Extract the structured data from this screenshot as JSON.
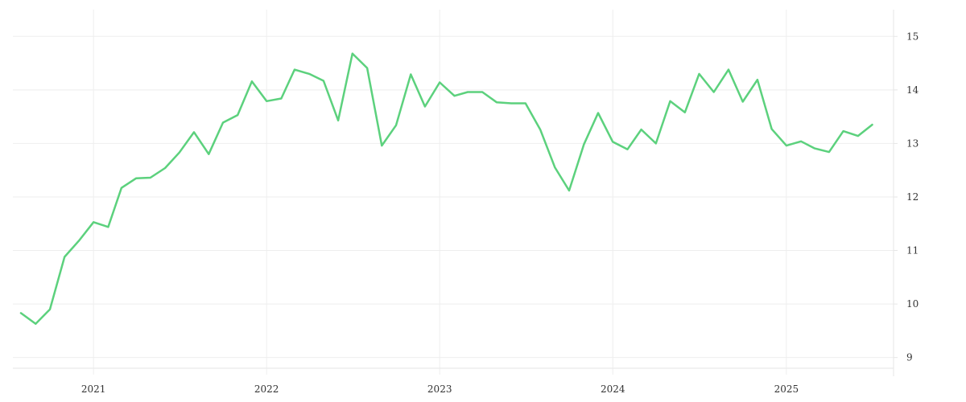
{
  "chart_data": {
    "type": "line",
    "title": "",
    "xlabel": "",
    "ylabel": "",
    "x_ticks": [
      "2021",
      "2022",
      "2023",
      "2024",
      "2025"
    ],
    "y_ticks": [
      "9",
      "10",
      "11",
      "12",
      "13",
      "14",
      "15"
    ],
    "ylim": [
      8.8,
      15.5
    ],
    "xlim": [
      "2020-07-15",
      "2025-08-15"
    ],
    "y_axis_position": "right",
    "grid": true,
    "colors": {
      "series": "#5cd17d",
      "grid": "#eeeeee",
      "axis": "#e6e6e6",
      "text": "#333333"
    },
    "series": [
      {
        "x": [
          "2020-08",
          "2020-09",
          "2020-10",
          "2020-11",
          "2020-12",
          "2021-01",
          "2021-02",
          "2021-03",
          "2021-04",
          "2021-05",
          "2021-06",
          "2021-07",
          "2021-08",
          "2021-09",
          "2021-10",
          "2021-11",
          "2021-12",
          "2022-01",
          "2022-02",
          "2022-03",
          "2022-04",
          "2022-05",
          "2022-06",
          "2022-07",
          "2022-08",
          "2022-09",
          "2022-10",
          "2022-11",
          "2022-12",
          "2023-01",
          "2023-02",
          "2023-03",
          "2023-04",
          "2023-05",
          "2023-06",
          "2023-07",
          "2023-08",
          "2023-09",
          "2023-10",
          "2023-11",
          "2023-12",
          "2024-01",
          "2024-02",
          "2024-03",
          "2024-04",
          "2024-05",
          "2024-06",
          "2024-07",
          "2024-08",
          "2024-09",
          "2024-10",
          "2024-11",
          "2024-12",
          "2025-01",
          "2025-02",
          "2025-03",
          "2025-04",
          "2025-05",
          "2025-06",
          "2025-07"
        ],
        "values": [
          9.83,
          9.63,
          9.9,
          10.88,
          11.18,
          11.53,
          11.44,
          12.17,
          12.35,
          12.36,
          12.54,
          12.83,
          13.21,
          12.8,
          13.39,
          13.53,
          14.16,
          13.79,
          13.84,
          14.38,
          14.3,
          14.17,
          13.43,
          14.68,
          14.41,
          12.96,
          13.34,
          14.29,
          13.69,
          14.14,
          13.89,
          13.96,
          13.96,
          13.77,
          13.75,
          13.75,
          13.26,
          12.55,
          12.12,
          12.98,
          13.57,
          13.03,
          12.89,
          13.26,
          13.0,
          13.79,
          13.58,
          14.3,
          13.96,
          14.38,
          13.78,
          14.19,
          13.27,
          12.96,
          13.04,
          12.91,
          12.84,
          13.23,
          13.14,
          13.35
        ]
      }
    ]
  }
}
